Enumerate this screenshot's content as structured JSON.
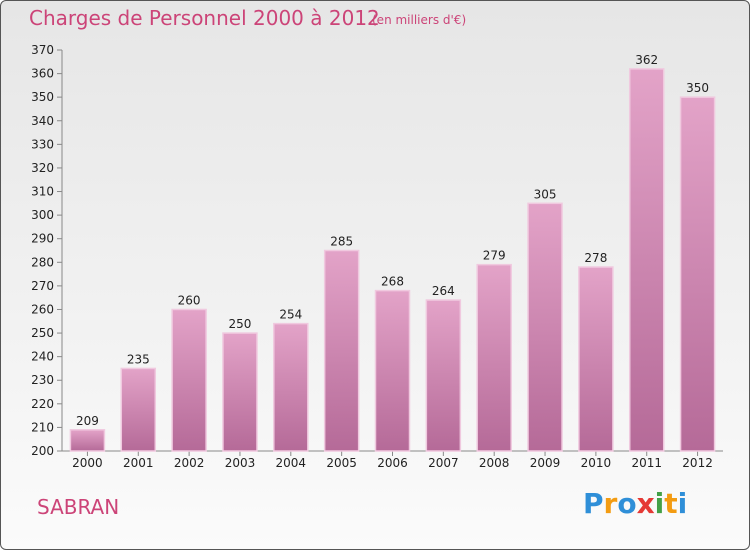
{
  "header": {
    "title": "Charges de Personnel 2000 à 2012",
    "subtitle": "(en milliers d'€)"
  },
  "footer": {
    "commune": "SABRAN",
    "logo_letters": [
      "P",
      "r",
      "o",
      "x",
      "i",
      "t",
      "i"
    ],
    "logo_colors": [
      "#2f8fd8",
      "#f39c12",
      "#2f8fd8",
      "#e53935",
      "#43a047",
      "#f39c12",
      "#2f8fd8"
    ]
  },
  "colors": {
    "accent": "#cc4478",
    "bar_top": "#e3a3c8",
    "bar_bottom": "#b56a98"
  },
  "chart_data": {
    "type": "bar",
    "categories": [
      "2000",
      "2001",
      "2002",
      "2003",
      "2004",
      "2005",
      "2006",
      "2007",
      "2008",
      "2009",
      "2010",
      "2011",
      "2012"
    ],
    "values": [
      209,
      235,
      260,
      250,
      254,
      285,
      268,
      264,
      279,
      305,
      278,
      362,
      350
    ],
    "ylim": [
      200,
      370
    ],
    "yticks": [
      200,
      210,
      220,
      230,
      240,
      250,
      260,
      270,
      280,
      290,
      300,
      310,
      320,
      330,
      340,
      350,
      360,
      370
    ],
    "grid": false,
    "data_labels": true
  }
}
